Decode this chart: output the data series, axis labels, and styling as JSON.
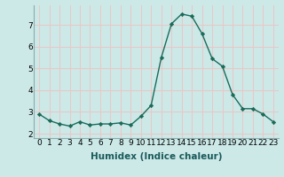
{
  "xlabel": "Humidex (Indice chaleur)",
  "x": [
    0,
    1,
    2,
    3,
    4,
    5,
    6,
    7,
    8,
    9,
    10,
    11,
    12,
    13,
    14,
    15,
    16,
    17,
    18,
    19,
    20,
    21,
    22,
    23
  ],
  "y": [
    2.9,
    2.6,
    2.45,
    2.35,
    2.55,
    2.4,
    2.45,
    2.45,
    2.5,
    2.4,
    2.8,
    3.3,
    5.5,
    7.05,
    7.5,
    7.4,
    6.6,
    5.45,
    5.1,
    3.8,
    3.15,
    3.15,
    2.9,
    2.55
  ],
  "line_color": "#1a6b5a",
  "marker": "D",
  "marker_size": 2.2,
  "bg_color": "#cce9e8",
  "grid_color": "#e8c8c8",
  "spine_color": "#8aacac",
  "ylim": [
    1.8,
    7.9
  ],
  "yticks": [
    2,
    3,
    4,
    5,
    6,
    7
  ],
  "xticks": [
    0,
    1,
    2,
    3,
    4,
    5,
    6,
    7,
    8,
    9,
    10,
    11,
    12,
    13,
    14,
    15,
    16,
    17,
    18,
    19,
    20,
    21,
    22,
    23
  ],
  "xlabel_fontsize": 7.5,
  "tick_fontsize": 6.5,
  "linewidth": 1.0
}
